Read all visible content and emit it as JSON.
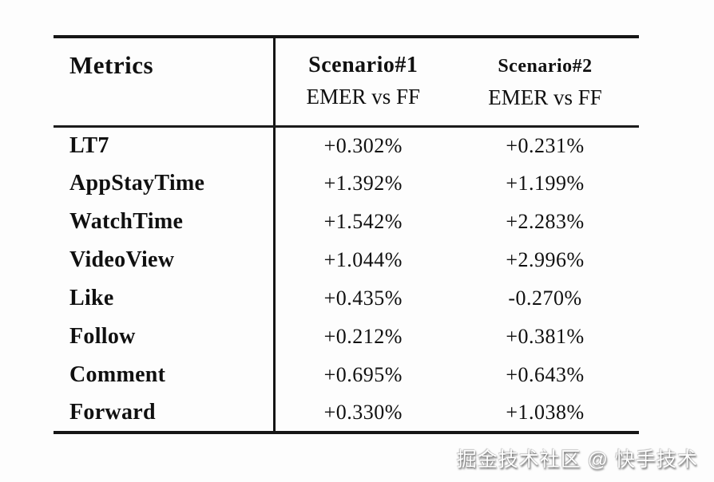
{
  "table": {
    "header": {
      "metrics_label": "Metrics",
      "columns": [
        {
          "title": "Scenario#1",
          "subtitle": "EMER vs FF"
        },
        {
          "title": "Scenario#2",
          "subtitle": "EMER vs FF"
        }
      ]
    },
    "rows": [
      {
        "metric": "LT7",
        "scenario1": "+0.302%",
        "scenario2": "+0.231%"
      },
      {
        "metric": "AppStayTime",
        "scenario1": "+1.392%",
        "scenario2": "+1.199%"
      },
      {
        "metric": "WatchTime",
        "scenario1": "+1.542%",
        "scenario2": "+2.283%"
      },
      {
        "metric": "VideoView",
        "scenario1": "+1.044%",
        "scenario2": "+2.996%"
      },
      {
        "metric": "Like",
        "scenario1": "+0.435%",
        "scenario2": "-0.270%"
      },
      {
        "metric": "Follow",
        "scenario1": "+0.212%",
        "scenario2": "+0.381%"
      },
      {
        "metric": "Comment",
        "scenario1": "+0.695%",
        "scenario2": "+0.643%"
      },
      {
        "metric": "Forward",
        "scenario1": "+0.330%",
        "scenario2": "+1.038%"
      }
    ]
  },
  "watermark": "掘金技术社区 @ 快手技术",
  "colors": {
    "background": "#fdfdfd",
    "text": "#101010",
    "rule": "#161616",
    "watermark_text": "#ffffff"
  }
}
